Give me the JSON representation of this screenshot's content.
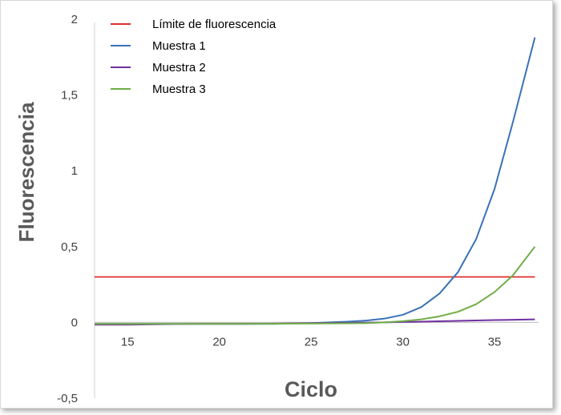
{
  "chart_data": {
    "type": "line",
    "xlabel": "Ciclo",
    "ylabel": "Fluorescencia",
    "xlim": [
      13.2,
      37.4
    ],
    "ylim": [
      -0.5,
      2
    ],
    "x_ticks": [
      "15",
      "20",
      "25",
      "30",
      "35"
    ],
    "x_tick_values": [
      15,
      20,
      25,
      30,
      35
    ],
    "y_ticks": [
      "-0,5",
      "0",
      "0,5",
      "1",
      "1,5",
      "2"
    ],
    "y_tick_values": [
      -0.5,
      0,
      0.5,
      1,
      1.5,
      2
    ],
    "grid": false,
    "legend_position": "top-left",
    "series": [
      {
        "name": "Límite de fluorescencia",
        "color": "#e03030",
        "x": [
          13.2,
          37.2
        ],
        "y": [
          0.3,
          0.3
        ]
      },
      {
        "name": "Muestra 1",
        "color": "#3a72b8",
        "x": [
          13.2,
          15,
          17,
          19,
          21,
          23,
          25,
          26,
          27,
          28,
          29,
          30,
          31,
          32,
          33,
          34,
          35,
          36,
          37.2
        ],
        "y": [
          -0.01,
          -0.01,
          -0.01,
          -0.01,
          -0.01,
          -0.01,
          -0.005,
          0.0,
          0.005,
          0.012,
          0.025,
          0.05,
          0.1,
          0.19,
          0.33,
          0.55,
          0.88,
          1.32,
          1.88
        ]
      },
      {
        "name": "Muestra 2",
        "color": "#7030a0",
        "x": [
          13.2,
          15,
          17,
          19,
          21,
          23,
          25,
          27,
          29,
          31,
          33,
          35,
          37.2
        ],
        "y": [
          -0.015,
          -0.015,
          -0.012,
          -0.01,
          -0.01,
          -0.008,
          -0.005,
          -0.003,
          0.0,
          0.005,
          0.01,
          0.015,
          0.02
        ]
      },
      {
        "name": "Muestra 3",
        "color": "#70ad47",
        "x": [
          13.2,
          20,
          25,
          28,
          29,
          30,
          31,
          32,
          33,
          34,
          35,
          36,
          37.2
        ],
        "y": [
          -0.01,
          -0.01,
          -0.008,
          -0.005,
          0.0,
          0.008,
          0.02,
          0.04,
          0.07,
          0.12,
          0.2,
          0.31,
          0.5
        ]
      }
    ]
  }
}
